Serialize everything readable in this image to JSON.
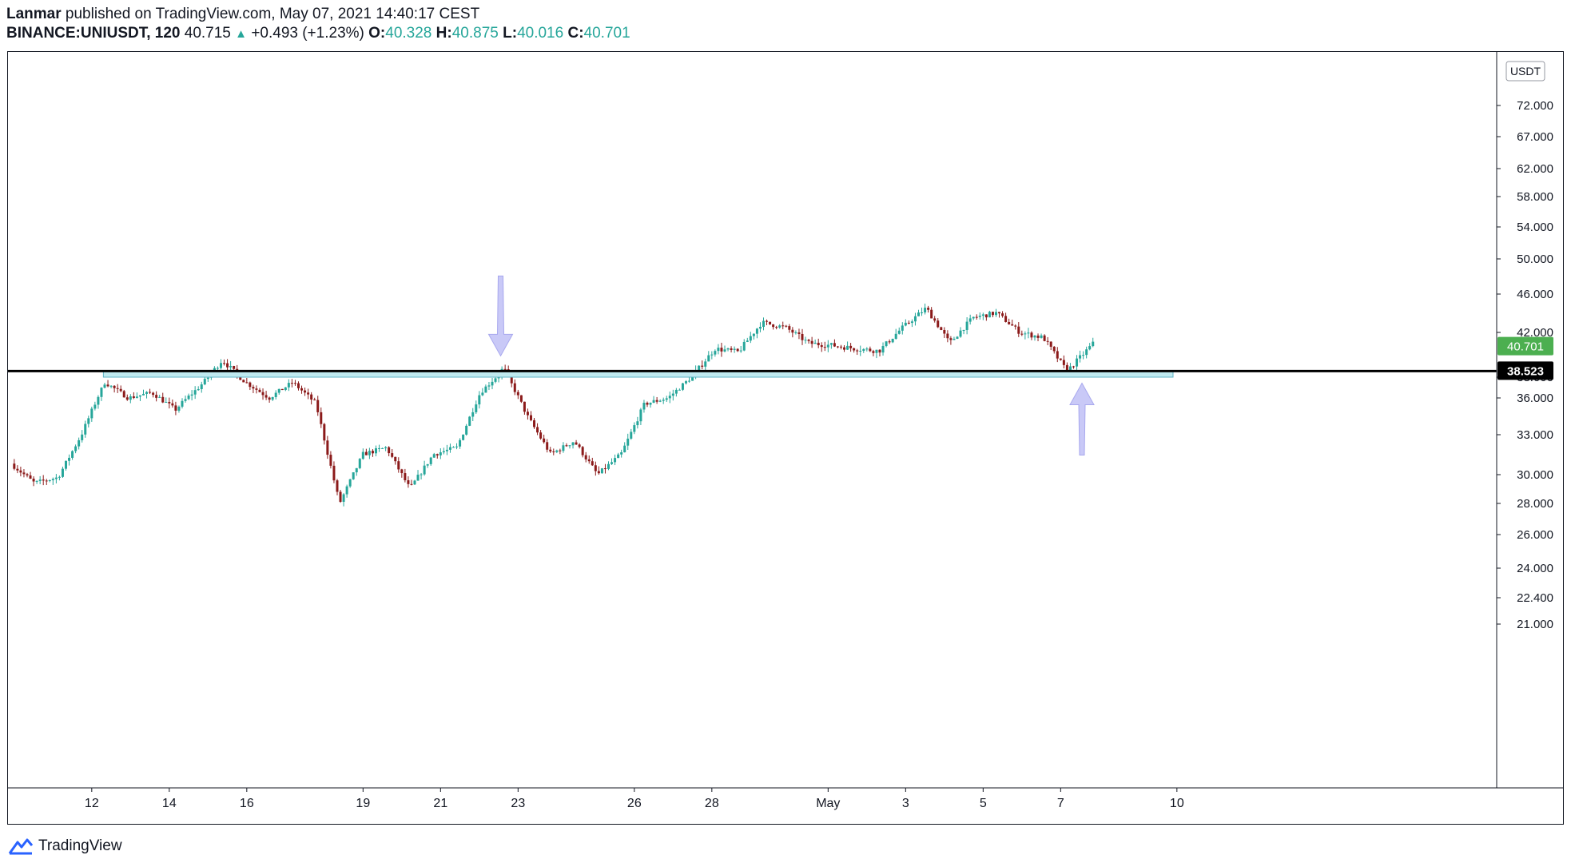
{
  "header": {
    "author": "Lanmar",
    "published_text": "published on TradingView.com, May 07, 2021 14:40:17 CEST",
    "symbol": "BINANCE:UNIUSDT, 120",
    "last": "40.715",
    "change": "+0.493 (+1.23%)",
    "o_label": "O:",
    "o_value": "40.328",
    "h_label": "H:",
    "h_value": "40.875",
    "l_label": "L:",
    "l_value": "40.016",
    "c_label": "C:",
    "c_value": "40.701",
    "up_color": "#26a69a",
    "down_color": "#8b1a1a"
  },
  "footer": {
    "brand": "TradingView",
    "logo_icon": "tradingview-logo-icon"
  },
  "chart_data": {
    "type": "candlestick",
    "symbol": "BINANCE:UNIUSDT",
    "interval": "120",
    "currency": "USDT",
    "yscale": "log",
    "ylim": [
      20.5,
      82
    ],
    "y_ticks": [
      "72.000",
      "67.000",
      "62.000",
      "58.000",
      "54.000",
      "50.000",
      "46.000",
      "42.000",
      "38.000",
      "36.000",
      "33.000",
      "30.000",
      "28.000",
      "26.000",
      "24.000",
      "22.400",
      "21.000"
    ],
    "x_ticks": [
      "12",
      "14",
      "16",
      "19",
      "21",
      "23",
      "26",
      "28",
      "May",
      "3",
      "5",
      "7",
      "10"
    ],
    "grid": false,
    "last_price_label": "40.701",
    "support_label": "38.523",
    "support_level": 38.523,
    "support_zone": [
      38.0,
      38.55
    ],
    "annotations": [
      {
        "type": "arrow-down",
        "at_date": "Apr 22",
        "price": 39.5
      },
      {
        "type": "arrow-up",
        "at_date": "May 7",
        "price": 37.8
      }
    ],
    "anchors": [
      [
        "Apr 10",
        30.8
      ],
      [
        "Apr 11",
        29.4
      ],
      [
        "Apr 12",
        29.8
      ],
      [
        "Apr 12",
        33.0
      ],
      [
        "Apr 13",
        37.5
      ],
      [
        "Apr 13",
        36.0
      ],
      [
        "Apr 14",
        36.5
      ],
      [
        "Apr 15",
        35.0
      ],
      [
        "Apr 15",
        37.0
      ],
      [
        "Apr 16",
        39.5
      ],
      [
        "Apr 16",
        37.5
      ],
      [
        "Apr 17",
        36.0
      ],
      [
        "Apr 18",
        37.5
      ],
      [
        "Apr 18",
        35.5
      ],
      [
        "Apr 19",
        28.0
      ],
      [
        "Apr 19",
        31.5
      ],
      [
        "Apr 20",
        32.0
      ],
      [
        "Apr 20",
        29.0
      ],
      [
        "Apr 21",
        31.5
      ],
      [
        "Apr 21",
        32.0
      ],
      [
        "Apr 22",
        36.5
      ],
      [
        "Apr 22",
        38.8
      ],
      [
        "Apr 23",
        34.5
      ],
      [
        "Apr 23",
        31.5
      ],
      [
        "Apr 24",
        32.5
      ],
      [
        "Apr 25",
        30.0
      ],
      [
        "Apr 25",
        31.5
      ],
      [
        "Apr 26",
        35.5
      ],
      [
        "Apr 26",
        36.0
      ],
      [
        "Apr 27",
        38.0
      ],
      [
        "Apr 27",
        40.5
      ],
      [
        "Apr 28",
        40.2
      ],
      [
        "Apr 28",
        43.0
      ],
      [
        "Apr 29",
        42.5
      ],
      [
        "Apr 29",
        41.0
      ],
      [
        "Apr 30",
        40.8
      ],
      [
        "May 1",
        40.5
      ],
      [
        "May 2",
        40.3
      ],
      [
        "May 2",
        42.5
      ],
      [
        "May 3",
        44.5
      ],
      [
        "May 4",
        41.0
      ],
      [
        "May 4",
        43.5
      ],
      [
        "May 5",
        44.0
      ],
      [
        "May 6",
        42.0
      ],
      [
        "May 6",
        41.5
      ],
      [
        "May 7",
        38.5
      ],
      [
        "May 7",
        40.7
      ]
    ]
  }
}
